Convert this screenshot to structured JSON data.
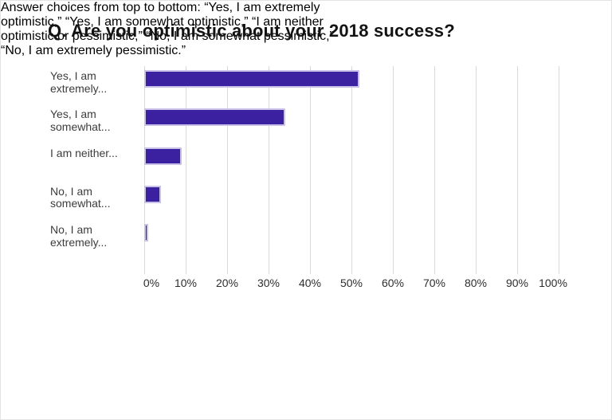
{
  "title": "Q. Are you optimistic about your 2018 success?",
  "chart_data": {
    "type": "bar",
    "orientation": "horizontal",
    "title": "Q. Are you optimistic about your 2018 success?",
    "categories": [
      "Yes, I am extremely optimistic",
      "Yes, I am somewhat optimistic",
      "I am neither optimistic or pessimistic",
      "No, I am somewhat pessimistic",
      "No, I am extremely pessimistic"
    ],
    "values": [
      52,
      34,
      9,
      4,
      1
    ],
    "unit": "percent",
    "xlabel": "",
    "ylabel": "",
    "xlim": [
      0,
      100
    ],
    "x_tick_labels": [
      "0%",
      "10%",
      "20%",
      "30%",
      "40%",
      "50%",
      "60%",
      "70%",
      "80%",
      "90%",
      "100%"
    ],
    "grid": "vertical-gridlines-on",
    "legend": "none"
  },
  "chart": {
    "rows": [
      {
        "label_lines": [
          "Yes, I am",
          "extremely..."
        ],
        "value": 52
      },
      {
        "label_lines": [
          "Yes, I am",
          "somewhat..."
        ],
        "value": 34
      },
      {
        "label_lines": [
          "I am neither..."
        ],
        "value": 9
      },
      {
        "label_lines": [
          "No, I am",
          "somewhat..."
        ],
        "value": 4
      },
      {
        "label_lines": [
          "No, I am",
          "extremely..."
        ],
        "value": 1
      }
    ]
  },
  "footnote": {
    "lines": [
      "Answer choices from top to bottom: “Yes, I am extremely",
      "optimistic,” “Yes, I am somewhat optimistic,” “I am neither",
      "optimistic or pessimistic,” “No, I am somewhat pessimistic,”",
      "“No, I am extremely pessimistic.”"
    ]
  },
  "colors": {
    "bar_fill": "#3b21a0",
    "bar_border": "#c9c0e9",
    "gridline": "#d9d9d9",
    "title_text": "#131313",
    "axis_tick_text": "#2e2e2e",
    "category_label_text": "#3c3c3c",
    "footnote_text": "#262626",
    "background": "#ffffff"
  }
}
